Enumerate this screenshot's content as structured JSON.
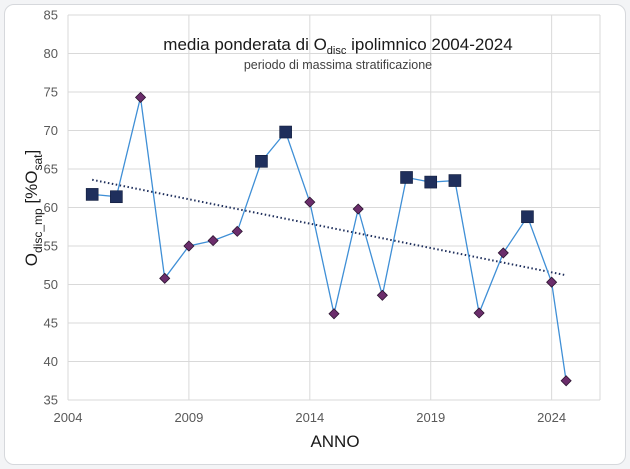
{
  "chart_data": {
    "type": "line",
    "title_parts": [
      "media ponderata di O",
      "disc",
      " ipolimnico 2004-2024"
    ],
    "subtitle": "periodo di massima stratificazione",
    "xlabel": "ANNO",
    "ylabel_parts": [
      "O",
      "disc_mp",
      " [%O",
      "sat",
      "]"
    ],
    "xlim": [
      2004,
      2026
    ],
    "ylim": [
      35,
      85
    ],
    "x_ticks": [
      2004,
      2009,
      2014,
      2019,
      2024
    ],
    "y_ticks": [
      35,
      40,
      45,
      50,
      55,
      60,
      65,
      70,
      75,
      80,
      85
    ],
    "grid": true,
    "legend": "none",
    "series": [
      {
        "points": [
          {
            "x": 2005,
            "y": 61.7,
            "marker": "square"
          },
          {
            "x": 2006,
            "y": 61.4,
            "marker": "square"
          },
          {
            "x": 2007,
            "y": 74.3,
            "marker": "diamond"
          },
          {
            "x": 2008,
            "y": 50.8,
            "marker": "diamond"
          },
          {
            "x": 2009,
            "y": 55.0,
            "marker": "diamond"
          },
          {
            "x": 2010,
            "y": 55.7,
            "marker": "diamond"
          },
          {
            "x": 2011,
            "y": 56.9,
            "marker": "diamond"
          },
          {
            "x": 2012,
            "y": 66.0,
            "marker": "square"
          },
          {
            "x": 2013,
            "y": 69.8,
            "marker": "square"
          },
          {
            "x": 2014,
            "y": 60.7,
            "marker": "diamond"
          },
          {
            "x": 2015,
            "y": 46.2,
            "marker": "diamond"
          },
          {
            "x": 2016,
            "y": 59.8,
            "marker": "diamond"
          },
          {
            "x": 2017,
            "y": 48.6,
            "marker": "diamond"
          },
          {
            "x": 2018,
            "y": 63.9,
            "marker": "square"
          },
          {
            "x": 2019,
            "y": 63.3,
            "marker": "square"
          },
          {
            "x": 2020,
            "y": 63.5,
            "marker": "square"
          },
          {
            "x": 2021,
            "y": 46.3,
            "marker": "diamond"
          },
          {
            "x": 2022,
            "y": 54.1,
            "marker": "diamond"
          },
          {
            "x": 2023,
            "y": 58.8,
            "marker": "square"
          },
          {
            "x": 2024,
            "y": 50.3,
            "marker": "diamond"
          },
          {
            "x": 2024.6,
            "y": 37.5,
            "marker": "diamond"
          }
        ]
      }
    ],
    "trendline": {
      "x": [
        2005,
        2024.6
      ],
      "y": [
        63.6,
        51.2
      ],
      "style": "dotted"
    },
    "colors": {
      "line": "#3f8fd6",
      "square_marker": "#1f2f5c",
      "diamond_marker": "#6b2d6b",
      "trend": "#1f2f5c",
      "grid": "#d9d9d9"
    }
  }
}
